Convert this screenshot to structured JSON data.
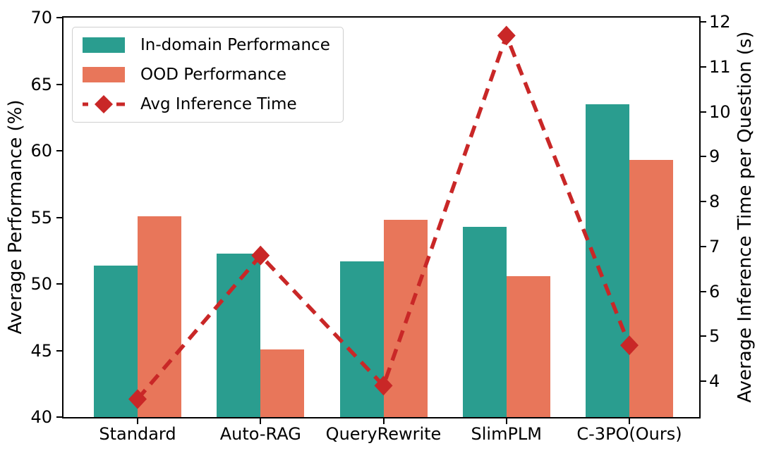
{
  "chart_data": {
    "type": "bar",
    "categories": [
      "Standard",
      "Auto-RAG",
      "QueryRewrite",
      "SlimPLM",
      "C-3PO(Ours)"
    ],
    "series": [
      {
        "name": "In-domain Performance",
        "type": "bar",
        "axis": "left",
        "color": "#2a9d8f",
        "values": [
          51.4,
          52.3,
          51.7,
          54.3,
          63.5
        ]
      },
      {
        "name": "OOD Performance",
        "type": "bar",
        "axis": "left",
        "color": "#e8765a",
        "values": [
          55.1,
          45.1,
          54.8,
          50.6,
          59.3
        ]
      },
      {
        "name": "Avg Inference Time",
        "type": "line",
        "axis": "right",
        "color": "#c92727",
        "linestyle": "dashed",
        "marker": "diamond",
        "values": [
          3.6,
          6.8,
          3.9,
          11.7,
          4.8
        ]
      }
    ],
    "left_axis": {
      "label": "Average Performance (%)",
      "min": 40,
      "max": 70,
      "ticks": [
        40,
        45,
        50,
        55,
        60,
        65,
        70
      ]
    },
    "right_axis": {
      "label": "Average Inference Time per Question (s)",
      "min": 3.2,
      "max": 12.1,
      "ticks": [
        4,
        5,
        6,
        7,
        8,
        9,
        10,
        11,
        12
      ]
    },
    "legend": {
      "position": "upper-left",
      "entries": [
        "In-domain Performance",
        "OOD Performance",
        "Avg Inference Time"
      ]
    },
    "grid": false
  }
}
